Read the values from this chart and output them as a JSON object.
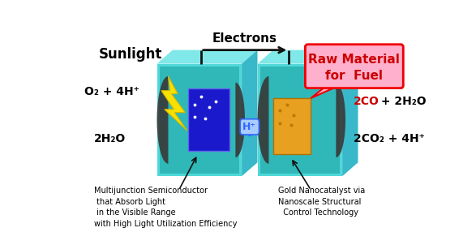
{
  "bg_color": "#ffffff",
  "electrons_label": "Electrons",
  "sunlight_label": "Sunlight",
  "left_reaction_top": "O₂ + 4H⁺",
  "left_reaction_bot": "2H₂O",
  "right_reaction_top_red": "2CO",
  "right_reaction_top_black": " + 2H₂O",
  "right_reaction_bot": "2CO₂ + 4H⁺",
  "bubble_text_line1": "Raw Material",
  "bubble_text_line2": "for  Fuel",
  "left_caption": "Multijunction Semiconductor\n that Absorb Light\n in the Visible Range\nwith High Light Utilization Efficiency",
  "right_caption": "Gold Nanocatalyst via\nNanoscale Structural\n  Control Technology",
  "teal_face": "#50D8D8",
  "teal_top": "#80E8E8",
  "teal_side": "#38B8C8",
  "teal_inner": "#30B8B8",
  "teal_back": "#28A0A8",
  "dark_gray": "#383838",
  "blue_rect": "#1A1ACC",
  "gold_rect": "#E8A020",
  "yellow_bolt": "#F8E000",
  "yellow_bolt_edge": "#D4B800",
  "red_text": "#CC0000",
  "bubble_bg": "#FFB0CC",
  "bubble_border": "#EE0000",
  "electron_color": "#111111",
  "hplus_color": "#3366FF",
  "hplus_bg": "#A8CCFF",
  "pointer_color": "#111111"
}
